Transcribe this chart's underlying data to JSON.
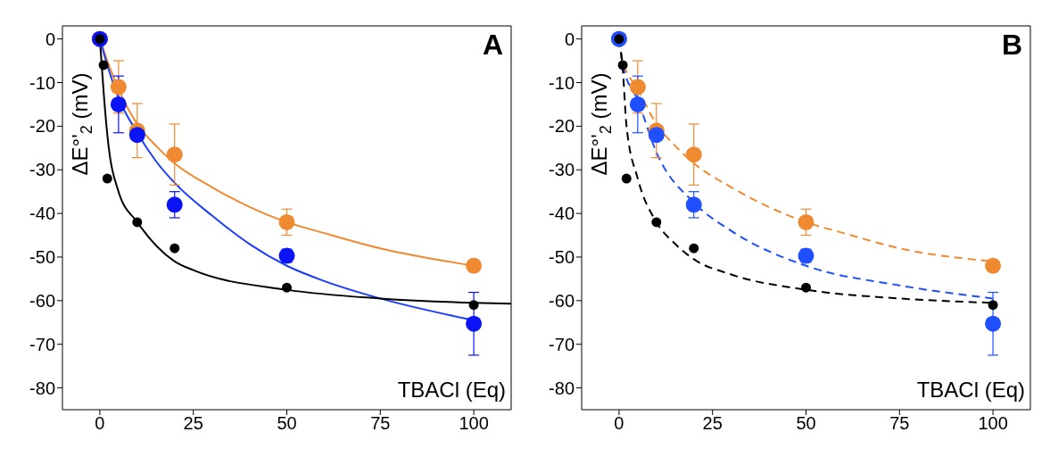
{
  "chart_data": [
    {
      "type": "scatter",
      "annotations": [
        "A"
      ],
      "xlabel": "TBACl (Eq)",
      "ylabel": "ΔE°'$_{2}$ (mV)",
      "xlim": [
        -10,
        110
      ],
      "ylim": [
        -85,
        3
      ],
      "xticks": [
        0,
        25,
        50,
        75,
        100
      ],
      "yticks": [
        0,
        -10,
        -20,
        -30,
        -40,
        -50,
        -60,
        -70,
        -80
      ],
      "series": [
        {
          "type": "line",
          "line_style": "solid",
          "color": "#f08a30",
          "x": [
            0,
            2,
            5,
            10,
            15,
            20,
            30,
            40,
            50,
            60,
            75,
            100
          ],
          "values": [
            0,
            -5,
            -11.5,
            -19.5,
            -24.5,
            -28.5,
            -34,
            -38.5,
            -42,
            -44.5,
            -48,
            -52
          ]
        },
        {
          "type": "line",
          "line_style": "solid",
          "color": "#1a3cff",
          "x": [
            0,
            2,
            5,
            10,
            15,
            20,
            30,
            40,
            50,
            60,
            75,
            100
          ],
          "values": [
            0,
            -6,
            -13.5,
            -21.5,
            -28,
            -33,
            -40.5,
            -47,
            -52,
            -55.5,
            -59.5,
            -64.5
          ]
        },
        {
          "type": "line",
          "line_style": "solid",
          "color": "#000000",
          "x": [
            0,
            1,
            2,
            5,
            10,
            20,
            25,
            50,
            75,
            100,
            110
          ],
          "values": [
            0,
            -12,
            -22,
            -35,
            -42,
            -51,
            -53,
            -57.5,
            -59.5,
            -60.5,
            -60.7
          ]
        },
        {
          "marker": "circle",
          "color": "#f08a30",
          "x": [
            0,
            5,
            10,
            20,
            50,
            100
          ],
          "values": [
            0,
            -11,
            -21,
            -26.5,
            -42,
            -52
          ],
          "errors": [
            null,
            6,
            6.2,
            7,
            3,
            1.3
          ]
        },
        {
          "marker": "circle",
          "color": "#0a14f5",
          "x": [
            0,
            5,
            10,
            20,
            50,
            100
          ],
          "values": [
            0,
            -15,
            -22,
            -38,
            -49.7,
            -65.3
          ],
          "errors": [
            null,
            6.5,
            1,
            3,
            1.5,
            7.2
          ]
        },
        {
          "marker": "circle",
          "color": "#000000",
          "x": [
            0,
            1,
            2,
            10,
            20,
            50,
            100
          ],
          "values": [
            0,
            -6,
            -32,
            -42,
            -48,
            -57,
            -61
          ]
        }
      ]
    },
    {
      "type": "scatter",
      "annotations": [
        "B"
      ],
      "xlabel": "TBACl (Eq)",
      "ylabel": "ΔE°'$_{2}$ (mV)",
      "xlim": [
        -10,
        110
      ],
      "ylim": [
        -85,
        3
      ],
      "xticks": [
        0,
        25,
        50,
        75,
        100
      ],
      "yticks": [
        0,
        -10,
        -20,
        -30,
        -40,
        -50,
        -60,
        -70,
        -80
      ],
      "series": [
        {
          "type": "line",
          "line_style": "dashed",
          "color": "#f08a30",
          "x": [
            0,
            1,
            5,
            10,
            15,
            20,
            30,
            40,
            50,
            60,
            75,
            100
          ],
          "values": [
            0,
            -5,
            -11.5,
            -19.5,
            -24.5,
            -28.5,
            -34,
            -38.5,
            -42,
            -44.5,
            -48,
            -51
          ]
        },
        {
          "type": "line",
          "line_style": "dashed",
          "color": "#1f4fff",
          "x": [
            0,
            1,
            5,
            10,
            20,
            30,
            50,
            75,
            100
          ],
          "values": [
            0,
            -6,
            -14,
            -26,
            -37.5,
            -44,
            -52,
            -56.5,
            -59.5
          ]
        },
        {
          "type": "line",
          "line_style": "dashed",
          "color": "#000000",
          "x": [
            0,
            1,
            2,
            5,
            10,
            15,
            20,
            30,
            50,
            75,
            100
          ],
          "values": [
            0,
            -7,
            -20,
            -32,
            -42,
            -47,
            -50.5,
            -54,
            -57.5,
            -59.5,
            -60.5
          ]
        },
        {
          "marker": "circle",
          "color": "#f08a30",
          "x": [
            0,
            5,
            10,
            20,
            50,
            100
          ],
          "values": [
            0,
            -11,
            -21,
            -26.5,
            -42,
            -52
          ],
          "errors": [
            null,
            6,
            6.2,
            7,
            3,
            1.3
          ]
        },
        {
          "marker": "circle",
          "color": "#1f4fff",
          "x": [
            0,
            5,
            10,
            20,
            50,
            100
          ],
          "values": [
            0,
            -15,
            -22,
            -38,
            -49.7,
            -65.3
          ],
          "errors": [
            null,
            6.5,
            1,
            3,
            1.5,
            7.2
          ]
        },
        {
          "marker": "circle",
          "color": "#000000",
          "x": [
            0,
            1,
            2,
            10,
            20,
            50,
            100
          ],
          "values": [
            0,
            -6,
            -32,
            -42,
            -48,
            -57,
            -61
          ]
        }
      ]
    }
  ]
}
